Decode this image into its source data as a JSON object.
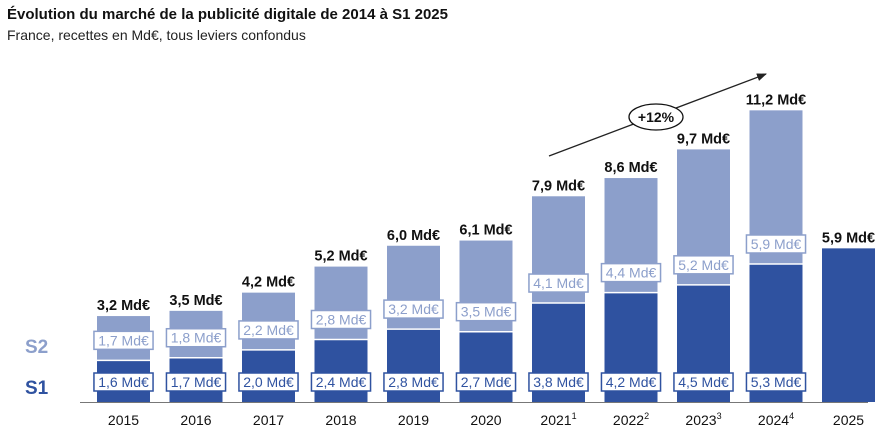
{
  "header": {
    "title": "Évolution du marché de la publicité digitale de 2014 à S1 2025",
    "subtitle": "France, recettes en Md€, tous leviers confondus"
  },
  "colors": {
    "s1": "#2f52a0",
    "s2": "#8c9fcb",
    "growth_arrow": "#222222",
    "baseline": "#777777"
  },
  "chart_data": {
    "type": "bar",
    "stacked": true,
    "title": "Évolution du marché de la publicité digitale de 2014 à S1 2025",
    "subtitle": "France, recettes en Md€, tous leviers confondus",
    "unit": "Md€",
    "categories": [
      {
        "label": "2015",
        "sup": ""
      },
      {
        "label": "2016",
        "sup": ""
      },
      {
        "label": "2017",
        "sup": ""
      },
      {
        "label": "2018",
        "sup": ""
      },
      {
        "label": "2019",
        "sup": ""
      },
      {
        "label": "2020",
        "sup": ""
      },
      {
        "label": "2021",
        "sup": "1"
      },
      {
        "label": "2022",
        "sup": "2"
      },
      {
        "label": "2023",
        "sup": "3"
      },
      {
        "label": "2024",
        "sup": "4"
      },
      {
        "label": "2025",
        "sup": ""
      }
    ],
    "series": [
      {
        "name": "S1",
        "values": [
          1.6,
          1.7,
          2.0,
          2.4,
          2.8,
          2.7,
          3.8,
          4.2,
          4.5,
          5.3,
          5.9
        ],
        "labels": [
          "1,6 Md€",
          "1,7 Md€",
          "2,0 Md€",
          "2,4 Md€",
          "2,8 Md€",
          "2,7 Md€",
          "3,8 Md€",
          "4,2 Md€",
          "4,5 Md€",
          "5,3 Md€",
          ""
        ]
      },
      {
        "name": "S2",
        "values": [
          1.7,
          1.8,
          2.2,
          2.8,
          3.2,
          3.5,
          4.1,
          4.4,
          5.2,
          5.9,
          null
        ],
        "labels": [
          "1,7 Md€",
          "1,8 Md€",
          "2,2 Md€",
          "2,8 Md€",
          "3,2 Md€",
          "3,5 Md€",
          "4,1 Md€",
          "4,4 Md€",
          "5,2 Md€",
          "5,9 Md€",
          ""
        ]
      }
    ],
    "totals": [
      3.2,
      3.5,
      4.2,
      5.2,
      6.0,
      6.1,
      7.9,
      8.6,
      9.7,
      11.2,
      5.9
    ],
    "total_labels": [
      "3,2 Md€",
      "3,5 Md€",
      "4,2 Md€",
      "5,2 Md€",
      "6,0 Md€",
      "6,1 Md€",
      "7,9 Md€",
      "8,6 Md€",
      "9,7 Md€",
      "11,2 Md€",
      "5,9 Md€"
    ],
    "annotation": {
      "text": "+12%"
    },
    "ylim": [
      0,
      11.2
    ],
    "grid": false,
    "legend": "left"
  }
}
